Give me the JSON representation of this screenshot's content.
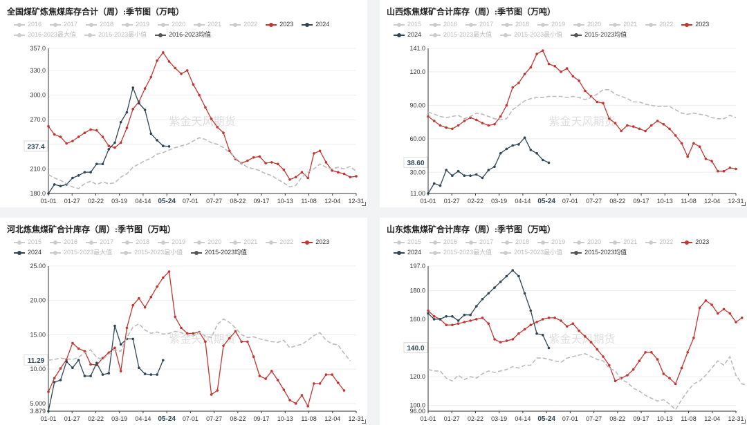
{
  "colors": {
    "c2023": "#c23531",
    "c2024": "#2f4554",
    "cavg": "#555555",
    "cband": "#bbbbbb",
    "cgray": "#cccccc",
    "axis": "#333333",
    "grid": "#ececec"
  },
  "watermark": "紫金天风期货",
  "x_ticks": [
    "01-01",
    "01-27",
    "02-22",
    "03-19",
    "04-14",
    "05-24",
    "07-01",
    "07-27",
    "08-22",
    "09-17",
    "10-13",
    "11-08",
    "12-04",
    "12-31"
  ],
  "chart_data": [
    {
      "type": "line",
      "title": "全国煤矿炼焦煤库存合计（周）:季节图（万吨）",
      "legend": [
        "2016",
        "2017",
        "2018",
        "2019",
        "2020",
        "2021",
        "2022",
        "2023",
        "2024",
        "2016-2023最大值",
        "2016-2023最小值",
        "2016-2023均值"
      ],
      "ylim": [
        180,
        357
      ],
      "y_ticks": [
        "357.0",
        "330.0",
        "300.0",
        "270.0",
        "240.0",
        "210.0",
        "180.0"
      ],
      "y_tick_values": [
        357,
        330,
        300,
        270,
        240,
        210,
        180
      ],
      "cursor_x_label": "05-24",
      "cursor_y_label": "237.4",
      "cursor_y": 237.4,
      "series": [
        {
          "name": "2023",
          "values": [
            262,
            252,
            249,
            241,
            244,
            249,
            254,
            258,
            257,
            249,
            238,
            236,
            242,
            260,
            283,
            292,
            308,
            322,
            342,
            352,
            341,
            333,
            326,
            330,
            313,
            300,
            285,
            271,
            261,
            254,
            232,
            222,
            217,
            220,
            224,
            225,
            217,
            218,
            216,
            209,
            197,
            200,
            206,
            199,
            229,
            232,
            218,
            208,
            206,
            204,
            200,
            201
          ]
        },
        {
          "name": "2024",
          "values": [
            180,
            191,
            189,
            191,
            199,
            202,
            206,
            206,
            216,
            216,
            234,
            242,
            267,
            279,
            309,
            290,
            282,
            253,
            245,
            238,
            237.4
          ]
        },
        {
          "name": "2016-2023均值",
          "values": [
            203,
            199,
            196,
            192,
            188,
            186,
            192,
            195,
            191,
            194,
            192,
            193,
            200,
            204,
            212,
            216,
            220,
            223,
            228,
            230,
            233,
            236,
            238,
            240,
            244,
            248,
            246,
            242,
            240,
            236,
            230,
            223,
            217,
            212,
            210,
            208,
            204,
            202,
            197,
            193,
            188,
            190,
            200,
            206,
            210,
            216,
            212,
            210,
            212,
            210,
            213,
            207
          ]
        }
      ]
    },
    {
      "type": "line",
      "title": "山西炼焦煤矿合计库存（周）:季节图（万吨）",
      "legend": [
        "2015",
        "2016",
        "2017",
        "2018",
        "2019",
        "2020",
        "2021",
        "2022",
        "2023",
        "2024",
        "2015-2023最大值",
        "2015-2023最小值",
        "2015-2023均值"
      ],
      "ylim": [
        11,
        141
      ],
      "y_ticks": [
        "141.0",
        "120.0",
        "90.00",
        "60.00",
        "30.00",
        "11.00"
      ],
      "y_tick_values": [
        141,
        120,
        90,
        60,
        30,
        11
      ],
      "cursor_x_label": "05-24",
      "cursor_y_label": "38.60",
      "cursor_y": 38.6,
      "series": [
        {
          "name": "2023",
          "values": [
            80,
            76,
            72,
            70,
            69,
            72,
            76,
            79,
            77,
            74,
            72,
            73,
            80,
            90,
            106,
            110,
            118,
            124,
            136,
            139,
            127,
            125,
            120,
            123,
            116,
            112,
            103,
            98,
            93,
            92,
            78,
            74,
            67,
            72,
            71,
            69,
            67,
            72,
            76,
            73,
            69,
            63,
            56,
            44,
            56,
            53,
            42,
            40,
            31,
            31,
            34,
            33
          ]
        },
        {
          "name": "2024",
          "values": [
            11,
            20,
            18,
            32,
            27,
            31,
            27,
            27,
            28,
            25,
            32,
            35,
            47,
            51,
            54,
            55,
            61,
            50,
            47,
            41,
            38.6
          ]
        },
        {
          "name": "2015-2023均值",
          "values": [
            84,
            82,
            80,
            79,
            80,
            81,
            78,
            80,
            83,
            82,
            80,
            78,
            77,
            78,
            86,
            90,
            94,
            96,
            97,
            97,
            98,
            98,
            98,
            97,
            98,
            97,
            95,
            97,
            100,
            104,
            104,
            100,
            98,
            96,
            93,
            93,
            91,
            90,
            89,
            89,
            89,
            86,
            83,
            82,
            83,
            82,
            81,
            79,
            78,
            78,
            81,
            79
          ]
        }
      ]
    },
    {
      "type": "line",
      "title": "河北炼焦煤矿合计库存（周）:季节图（万吨）",
      "legend": [
        "2015",
        "2016",
        "2017",
        "2018",
        "2019",
        "2020",
        "2021",
        "2022",
        "2023",
        "2024",
        "2015-2023最大值",
        "2015-2023最小值",
        "2015-2023均值"
      ],
      "ylim": [
        3.879,
        25
      ],
      "y_ticks": [
        "25.00",
        "20.00",
        "15.00",
        "10.00",
        "5.000",
        "3.879"
      ],
      "y_tick_values": [
        25,
        20,
        15,
        10,
        5,
        3.879
      ],
      "cursor_x_label": "05-24",
      "cursor_y_label": "11.29",
      "cursor_y": 11.29,
      "series": [
        {
          "name": "2023",
          "values": [
            6.7,
            8.7,
            10.1,
            11.4,
            13.8,
            13.0,
            12.6,
            10.7,
            10.6,
            11.6,
            12.4,
            13.1,
            9.7,
            16.0,
            19.3,
            20.3,
            19.0,
            20.5,
            22.0,
            23.3,
            24.2,
            17.6,
            16.0,
            15.2,
            15.2,
            15.4,
            14.0,
            6.3,
            6.9,
            13.4,
            14.5,
            15.5,
            14.0,
            14.0,
            11.8,
            9.0,
            8.6,
            9.7,
            8.4,
            7.0,
            5.5,
            5.0,
            6.2,
            4.6,
            7.9,
            7.9,
            9.2,
            9.2,
            8.0,
            6.9
          ]
        },
        {
          "name": "2024",
          "values": [
            3.879,
            8.1,
            8.4,
            11.1,
            10.2,
            11.3,
            9.0,
            9.0,
            10.9,
            9.2,
            9.4,
            16.3,
            13.6,
            14.4,
            14.4,
            10.2,
            9.3,
            9.2,
            9.2,
            11.29
          ]
        },
        {
          "name": "2015-2023均值",
          "values": [
            11.3,
            11.4,
            11.6,
            11.5,
            11.4,
            11.7,
            12.4,
            12.8,
            11.7,
            11.4,
            12.2,
            12.8,
            12.6,
            14.6,
            16.1,
            16.6,
            15.7,
            15.2,
            15.4,
            15.1,
            15.2,
            15.5,
            15.3,
            15.0,
            14.8,
            15.4,
            14.8,
            14.6,
            16.5,
            17.3,
            16.8,
            16.0,
            15.0,
            14.6,
            14.7,
            14.4,
            14.2,
            14.0,
            13.9,
            14.2,
            13.1,
            13.4,
            13.6,
            14.2,
            14.9,
            15.3,
            14.2,
            13.7,
            13.5,
            12.3,
            11.2
          ]
        }
      ]
    },
    {
      "type": "line",
      "title": "山东炼焦煤矿合计库存（周）:季节图（万吨）",
      "legend": [
        "2015",
        "2016",
        "2017",
        "2018",
        "2019",
        "2020",
        "2021",
        "2022",
        "2023",
        "2024",
        "2015-2023最大值",
        "2015-2023最小值",
        "2015-2023均值"
      ],
      "ylim": [
        96,
        197
      ],
      "y_ticks": [
        "197.0",
        "180.0",
        "160.0",
        "140.0",
        "120.0",
        "100.0",
        "96.00"
      ],
      "y_tick_values": [
        197,
        180,
        160,
        140,
        120,
        100,
        96
      ],
      "cursor_x_label": "05-24",
      "cursor_y_label": "140.0",
      "cursor_y": 140,
      "series": [
        {
          "name": "2023",
          "values": [
            166,
            162,
            160,
            156,
            156,
            157,
            158,
            159,
            160,
            161,
            157,
            146,
            144,
            145,
            146,
            150,
            153,
            156,
            158,
            160,
            161,
            161,
            159,
            155,
            157,
            152,
            148,
            144,
            139,
            134,
            128,
            117,
            119,
            121,
            125,
            131,
            137,
            137,
            132,
            122,
            119,
            115,
            126,
            137,
            147,
            168,
            173,
            170,
            164,
            167,
            164,
            158,
            161
          ]
        },
        {
          "name": "2024",
          "values": [
            164,
            160,
            160,
            162,
            162,
            159,
            163,
            163,
            169,
            174,
            178,
            182,
            186,
            190,
            194,
            190,
            178,
            166,
            150,
            149,
            140
          ]
        },
        {
          "name": "2015-2023均值",
          "values": [
            125,
            124,
            124,
            119,
            117,
            121,
            118,
            120,
            119,
            122,
            124,
            123,
            124,
            125,
            127,
            126,
            128,
            128,
            133,
            133,
            132,
            131,
            130,
            133,
            134,
            135,
            136,
            134,
            132,
            131,
            126,
            124,
            118,
            116,
            112,
            110,
            107,
            105,
            103,
            104,
            101,
            97,
            104,
            110,
            115,
            117,
            121,
            126,
            131,
            128,
            134,
            121,
            115,
            114
          ]
        }
      ]
    }
  ]
}
